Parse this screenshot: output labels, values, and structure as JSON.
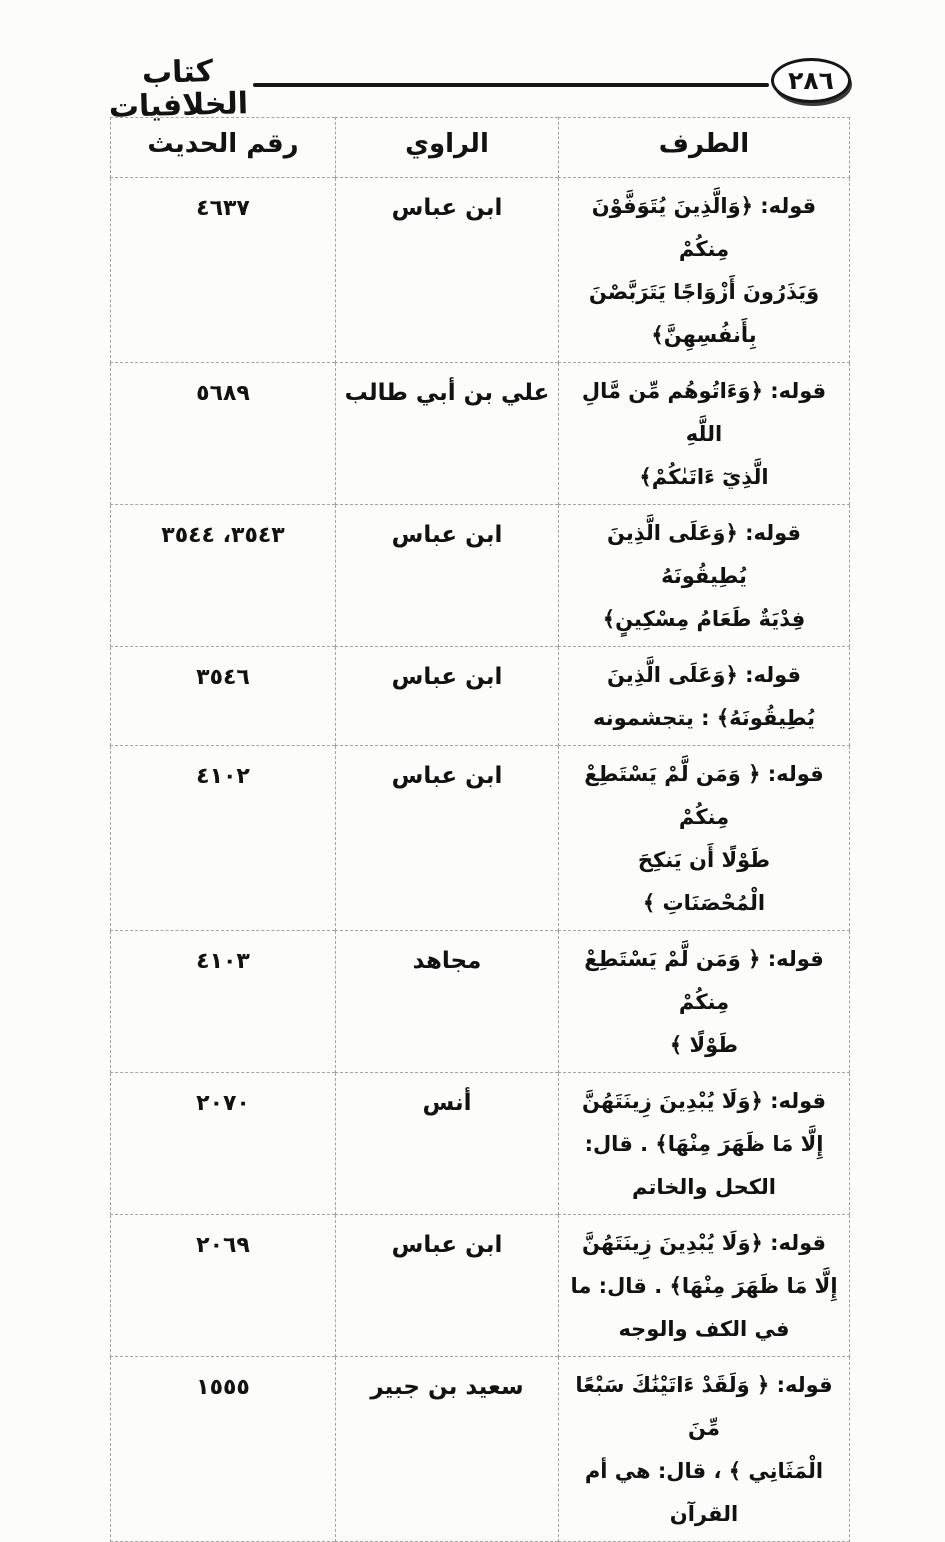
{
  "page": {
    "number": "٢٨٦",
    "book_title": "كتاب الخلافيات"
  },
  "table": {
    "headers": {
      "taraf": "الطرف",
      "rawi": "الراوي",
      "raqm": "رقم الحديث"
    },
    "rows": [
      {
        "taraf": "قوله: ﴿وَالَّذِينَ يُتَوَفَّوْنَ مِنكُمْ\nوَيَذَرُونَ أَزْوَاجًا يَتَرَبَّصْنَ\nبِأَنفُسِهِنَّ﴾",
        "rawi": "ابن عباس",
        "raqm": "٤٦٣٧"
      },
      {
        "taraf": "قوله: ﴿وَءَاتُوهُم مِّن مَّالِ اللَّهِ\nالَّذِيٓ ءَاتَىٰكُمْ﴾",
        "rawi": "علي بن أبي طالب",
        "raqm": "٥٦٨٩"
      },
      {
        "taraf": "قوله: ﴿وَعَلَى الَّذِينَ يُطِيقُونَهُ\nفِدْيَةٌ طَعَامُ مِسْكِينٍ﴾",
        "rawi": "ابن عباس",
        "raqm": "٣٥٤٣، ٣٥٤٤"
      },
      {
        "taraf": "قوله: ﴿وَعَلَى الَّذِينَ\nيُطِيقُونَهُ﴾ : يتجشمونه",
        "rawi": "ابن عباس",
        "raqm": "٣٥٤٦"
      },
      {
        "taraf": "قوله: ﴿ وَمَن لَّمْ يَسْتَطِعْ مِنكُمْ\nطَوْلًا أَن يَنكِحَ\nالْمُحْصَنَاتِ ﴾",
        "rawi": "ابن عباس",
        "raqm": "٤١٠٢"
      },
      {
        "taraf": "قوله: ﴿ وَمَن لَّمْ يَسْتَطِعْ مِنكُمْ\nطَوْلًا ﴾",
        "rawi": "مجاهد",
        "raqm": "٤١٠٣"
      },
      {
        "taraf": "قوله: ﴿وَلَا يُبْدِينَ زِينَتَهُنَّ\nإِلَّا مَا ظَهَرَ مِنْهَا﴾ . قال:\nالكحل والخاتم",
        "rawi": "أنس",
        "raqm": "٢٠٧٠"
      },
      {
        "taraf": "قوله: ﴿وَلَا يُبْدِينَ زِينَتَهُنَّ\nإِلَّا مَا ظَهَرَ مِنْهَا﴾ . قال: ما\nفي الكف والوجه",
        "rawi": "ابن عباس",
        "raqm": "٢٠٦٩"
      },
      {
        "taraf": "قوله: ﴿ وَلَقَدْ ءَاتَيْنَٰكَ سَبْعًا مِّنَ\nالْمَثَانِي ﴾ ، قال: هي أم القرآن",
        "rawi": "سعيد بن جبير",
        "raqm": "١٥٥٥"
      }
    ]
  },
  "colors": {
    "paper": "#fcfcfa",
    "ink": "#121212",
    "table_border": "#a3a3a3"
  }
}
